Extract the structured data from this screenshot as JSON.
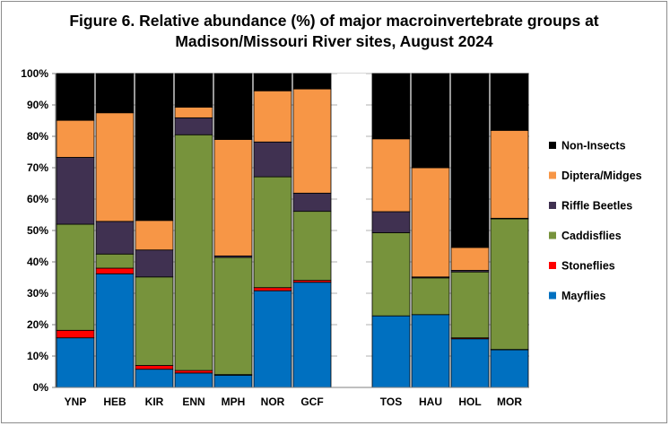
{
  "chart_data": {
    "type": "stacked-bar",
    "title_line1": "Figure 6. Relative abundance (%) of major macroinvertebrate groups at",
    "title_line2": "Madison/Missouri River sites, August 2024",
    "categories": [
      "YNP",
      "HEB",
      "KIR",
      "ENN",
      "MPH",
      "NOR",
      "GCF",
      "TOS",
      "HAU",
      "HOL",
      "MOR"
    ],
    "group_break_after": "GCF",
    "ylim": [
      0,
      100
    ],
    "y_ticks": [
      "0%",
      "10%",
      "20%",
      "30%",
      "40%",
      "50%",
      "60%",
      "70%",
      "80%",
      "90%",
      "100%"
    ],
    "series": [
      {
        "name": "Mayflies",
        "color": "#0070c0",
        "values": [
          15.8,
          36.2,
          5.8,
          4.6,
          3.9,
          30.8,
          33.5,
          22.8,
          23.2,
          15.5,
          12.0
        ]
      },
      {
        "name": "Stoneflies",
        "color": "#ff0000",
        "values": [
          2.4,
          1.8,
          1.2,
          0.8,
          0.2,
          1.0,
          0.6,
          0.0,
          0.0,
          0.3,
          0.1
        ]
      },
      {
        "name": "Caddisflies",
        "color": "#77933c",
        "values": [
          33.8,
          4.5,
          28.2,
          75.1,
          37.3,
          35.3,
          22.0,
          26.5,
          11.7,
          21.0,
          41.6
        ]
      },
      {
        "name": "Riffle Beetles",
        "color": "#403151",
        "values": [
          21.3,
          10.4,
          8.6,
          5.4,
          0.5,
          11.1,
          5.8,
          6.7,
          0.3,
          0.5,
          0.2
        ]
      },
      {
        "name": "Diptera/Midges",
        "color": "#f79646",
        "values": [
          11.8,
          34.6,
          9.4,
          3.4,
          37.1,
          16.3,
          33.2,
          23.2,
          34.8,
          7.3,
          28.0
        ]
      },
      {
        "name": "Non-Insects",
        "color": "#000000",
        "values": [
          14.9,
          12.5,
          46.8,
          10.7,
          21.0,
          5.5,
          4.9,
          20.8,
          30.0,
          55.4,
          18.1
        ]
      }
    ],
    "legend": [
      "Non-Insects",
      "Diptera/Midges",
      "Riffle Beetles",
      "Caddisflies",
      "Stoneflies",
      "Mayflies"
    ],
    "legend_position": "right"
  }
}
